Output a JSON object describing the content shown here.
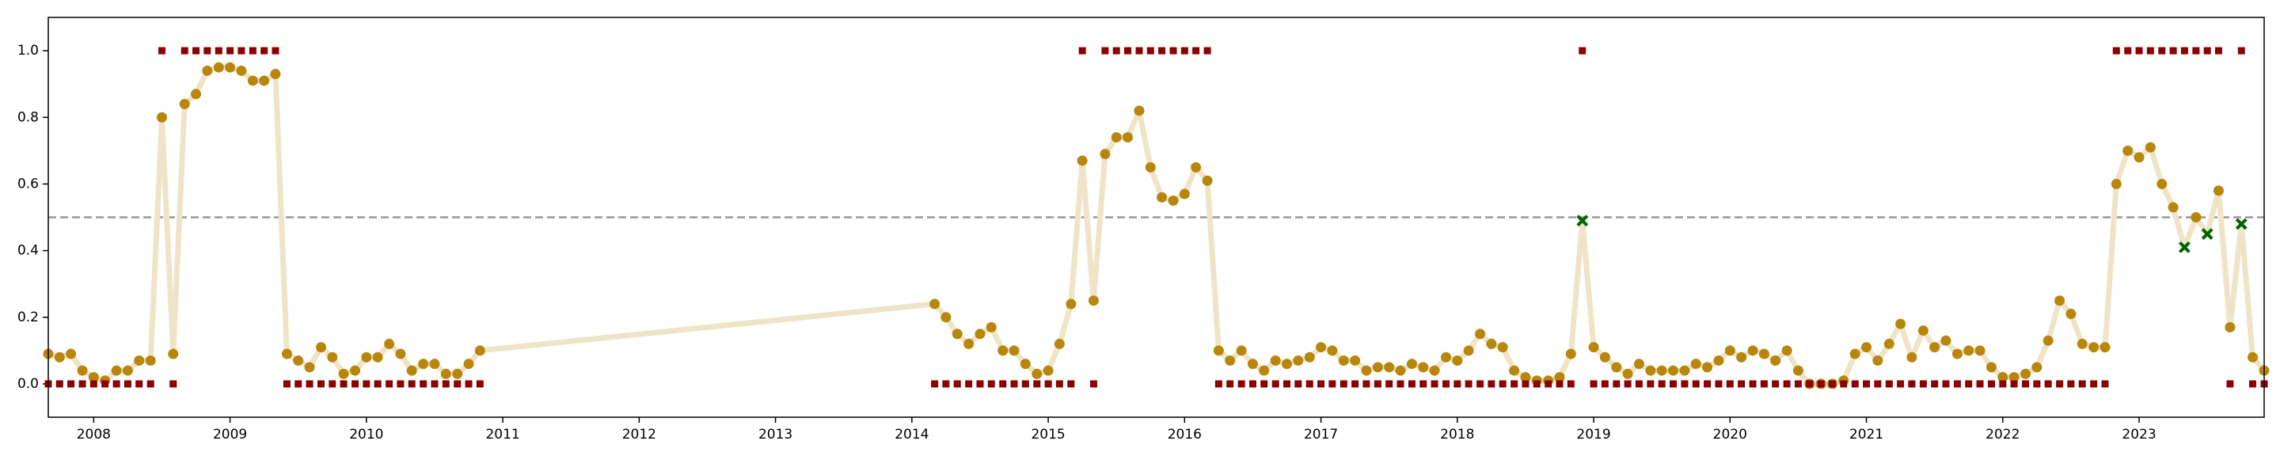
{
  "chart_data": {
    "type": "line",
    "x": [
      2007.667,
      2007.75,
      2007.833,
      2007.917,
      2008,
      2008.083,
      2008.167,
      2008.25,
      2008.333,
      2008.417,
      2008.5,
      2008.583,
      2008.667,
      2008.75,
      2008.833,
      2008.917,
      2009,
      2009.083,
      2009.167,
      2009.25,
      2009.333,
      2009.417,
      2009.5,
      2009.583,
      2009.667,
      2009.75,
      2009.833,
      2009.917,
      2010,
      2010.083,
      2010.167,
      2010.25,
      2010.333,
      2010.417,
      2010.5,
      2010.583,
      2010.667,
      2010.75,
      2010.833,
      2014.167,
      2014.25,
      2014.333,
      2014.417,
      2014.5,
      2014.583,
      2014.667,
      2014.75,
      2014.833,
      2014.917,
      2015,
      2015.083,
      2015.167,
      2015.25,
      2015.333,
      2015.417,
      2015.5,
      2015.583,
      2015.667,
      2015.75,
      2015.833,
      2015.917,
      2016,
      2016.083,
      2016.167,
      2016.25,
      2016.333,
      2016.417,
      2016.5,
      2016.583,
      2016.667,
      2016.75,
      2016.833,
      2016.917,
      2017,
      2017.083,
      2017.167,
      2017.25,
      2017.333,
      2017.417,
      2017.5,
      2017.583,
      2017.667,
      2017.75,
      2017.833,
      2017.917,
      2018,
      2018.083,
      2018.167,
      2018.25,
      2018.333,
      2018.417,
      2018.5,
      2018.583,
      2018.667,
      2018.75,
      2018.833,
      2018.917,
      2019,
      2019.083,
      2019.167,
      2019.25,
      2019.333,
      2019.417,
      2019.5,
      2019.583,
      2019.667,
      2019.75,
      2019.833,
      2019.917,
      2020,
      2020.083,
      2020.167,
      2020.25,
      2020.333,
      2020.417,
      2020.5,
      2020.583,
      2020.667,
      2020.75,
      2020.833,
      2020.917,
      2021,
      2021.083,
      2021.167,
      2021.25,
      2021.333,
      2021.417,
      2021.5,
      2021.583,
      2021.667,
      2021.75,
      2021.833,
      2021.917,
      2022,
      2022.083,
      2022.167,
      2022.25,
      2022.333,
      2022.417,
      2022.5,
      2022.583,
      2022.667,
      2022.75,
      2022.833,
      2022.917,
      2023,
      2023.083,
      2023.167,
      2023.25,
      2023.333,
      2023.417,
      2023.5,
      2023.583,
      2023.667,
      2023.75,
      2023.833,
      2023.917
    ],
    "series": [
      {
        "color": "#b8860b",
        "line_color": "#f0e4c8",
        "marker": "circle",
        "line": true,
        "values": [
          0.09,
          0.08,
          0.09,
          0.04,
          0.02,
          0.01,
          0.04,
          0.04,
          0.07,
          0.07,
          0.8,
          0.09,
          0.84,
          0.87,
          0.94,
          0.95,
          0.95,
          0.94,
          0.91,
          0.91,
          0.93,
          0.09,
          0.07,
          0.05,
          0.11,
          0.08,
          0.03,
          0.04,
          0.08,
          0.08,
          0.12,
          0.09,
          0.04,
          0.06,
          0.06,
          0.03,
          0.03,
          0.06,
          0.1,
          0.24,
          0.2,
          0.15,
          0.12,
          0.15,
          0.17,
          0.1,
          0.1,
          0.06,
          0.03,
          0.04,
          0.12,
          0.24,
          0.67,
          0.25,
          0.69,
          0.74,
          0.74,
          0.82,
          0.65,
          0.56,
          0.55,
          0.57,
          0.65,
          0.61,
          0.1,
          0.07,
          0.1,
          0.06,
          0.04,
          0.07,
          0.06,
          0.07,
          0.08,
          0.11,
          0.1,
          0.07,
          0.07,
          0.04,
          0.05,
          0.05,
          0.04,
          0.06,
          0.05,
          0.04,
          0.08,
          0.07,
          0.1,
          0.15,
          0.12,
          0.11,
          0.04,
          0.02,
          0.01,
          0.01,
          0.02,
          0.09,
          0.49,
          0.11,
          0.08,
          0.05,
          0.03,
          0.06,
          0.04,
          0.04,
          0.04,
          0.04,
          0.06,
          0.05,
          0.07,
          0.1,
          0.08,
          0.1,
          0.09,
          0.07,
          0.1,
          0.04,
          0.0,
          0.0,
          0.0,
          0.01,
          0.09,
          0.11,
          0.07,
          0.12,
          0.18,
          0.08,
          0.16,
          0.11,
          0.13,
          0.09,
          0.1,
          0.1,
          0.05,
          0.02,
          0.02,
          0.03,
          0.05,
          0.13,
          0.25,
          0.21,
          0.12,
          0.11,
          0.11,
          0.6,
          0.7,
          0.68,
          0.71,
          0.6,
          0.53,
          0.41,
          0.5,
          0.45,
          0.58,
          0.17,
          0.48,
          0.08,
          0.04
        ]
      },
      {
        "color": "#8b0000",
        "marker": "square",
        "line": false,
        "values": [
          0,
          0,
          0,
          0,
          0,
          0,
          0,
          0,
          0,
          0,
          1,
          0,
          1,
          1,
          1,
          1,
          1,
          1,
          1,
          1,
          1,
          0,
          0,
          0,
          0,
          0,
          0,
          0,
          0,
          0,
          0,
          0,
          0,
          0,
          0,
          0,
          0,
          0,
          0,
          0,
          0,
          0,
          0,
          0,
          0,
          0,
          0,
          0,
          0,
          0,
          0,
          0,
          1,
          0,
          1,
          1,
          1,
          1,
          1,
          1,
          1,
          1,
          1,
          1,
          0,
          0,
          0,
          0,
          0,
          0,
          0,
          0,
          0,
          0,
          0,
          0,
          0,
          0,
          0,
          0,
          0,
          0,
          0,
          0,
          0,
          0,
          0,
          0,
          0,
          0,
          0,
          0,
          0,
          0,
          0,
          0,
          1,
          0,
          0,
          0,
          0,
          0,
          0,
          0,
          0,
          0,
          0,
          0,
          0,
          0,
          0,
          0,
          0,
          0,
          0,
          0,
          0,
          0,
          0,
          0,
          0,
          0,
          0,
          0,
          0,
          0,
          0,
          0,
          0,
          0,
          0,
          0,
          0,
          0,
          0,
          0,
          0,
          0,
          0,
          0,
          0,
          0,
          0,
          1,
          1,
          1,
          1,
          1,
          1,
          1,
          1,
          1,
          1,
          0,
          1,
          0,
          0
        ]
      }
    ],
    "threshold": 0.5,
    "threshold_color": "#999999",
    "miss_color": "#006400",
    "xlim": [
      2007.667,
      2023.917
    ],
    "xticks": [
      2008,
      2009,
      2010,
      2011,
      2012,
      2013,
      2014,
      2015,
      2016,
      2017,
      2018,
      2019,
      2020,
      2021,
      2022,
      2023
    ],
    "ylim": [
      -0.1,
      1.1
    ],
    "yticks": [
      {
        "value": 0,
        "label": "0.0"
      },
      0.2,
      0.4,
      0.6,
      0.8,
      {
        "value": 1,
        "label": "1.0"
      }
    ],
    "grid": false
  }
}
